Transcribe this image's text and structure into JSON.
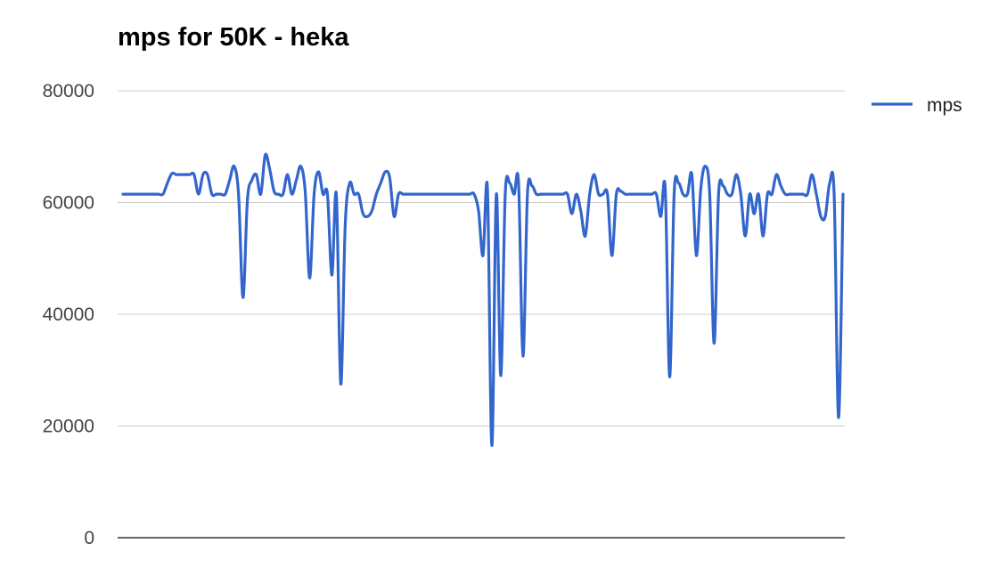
{
  "chart_data": {
    "type": "line",
    "title": "mps for 50K - heka",
    "xlabel": "",
    "ylabel": "",
    "ylim": [
      0,
      80000
    ],
    "yticks": [
      "0",
      "20000",
      "40000",
      "60000",
      "80000"
    ],
    "grid": true,
    "legend_position": "right",
    "series": [
      {
        "name": "mps",
        "color": "#3366cc",
        "values": [
          61500,
          61500,
          61500,
          61500,
          61500,
          61500,
          61500,
          61500,
          61500,
          61500,
          63500,
          65200,
          65000,
          65000,
          65000,
          65000,
          65000,
          61500,
          65000,
          65000,
          61500,
          61500,
          61500,
          61500,
          64000,
          66500,
          61500,
          43000,
          60500,
          64000,
          65000,
          61500,
          68500,
          66000,
          62000,
          61500,
          61500,
          65000,
          61500,
          64000,
          66500,
          62000,
          46500,
          61500,
          65500,
          61500,
          61500,
          47000,
          61500,
          27500,
          56000,
          63500,
          61500,
          61500,
          58000,
          57500,
          58500,
          61500,
          63500,
          65500,
          64500,
          57500,
          61500,
          61500,
          61500,
          61500,
          61500,
          61500,
          61500,
          61500,
          61500,
          61500,
          61500,
          61500,
          61500,
          61500,
          61500,
          61500,
          61500,
          61500,
          58500,
          50500,
          62500,
          16500,
          61500,
          29000,
          61500,
          63500,
          61500,
          63500,
          32500,
          61500,
          63000,
          61500,
          61500,
          61500,
          61500,
          61500,
          61500,
          61500,
          61500,
          58000,
          61500,
          58500,
          54000,
          61500,
          65000,
          61500,
          61500,
          61500,
          50500,
          61500,
          62000,
          61500,
          61500,
          61500,
          61500,
          61500,
          61500,
          61500,
          61500,
          57500,
          62500,
          28800,
          61500,
          63500,
          61500,
          61500,
          65000,
          50500,
          62500,
          66500,
          61500,
          34800,
          61500,
          63000,
          61500,
          61500,
          65000,
          61500,
          54000,
          61500,
          58000,
          61500,
          54000,
          61500,
          61500,
          65000,
          63000,
          61500,
          61500,
          61500,
          61500,
          61500,
          61500,
          65000,
          61500,
          57500,
          57500,
          63500,
          61500,
          21500,
          61500
        ]
      }
    ]
  }
}
